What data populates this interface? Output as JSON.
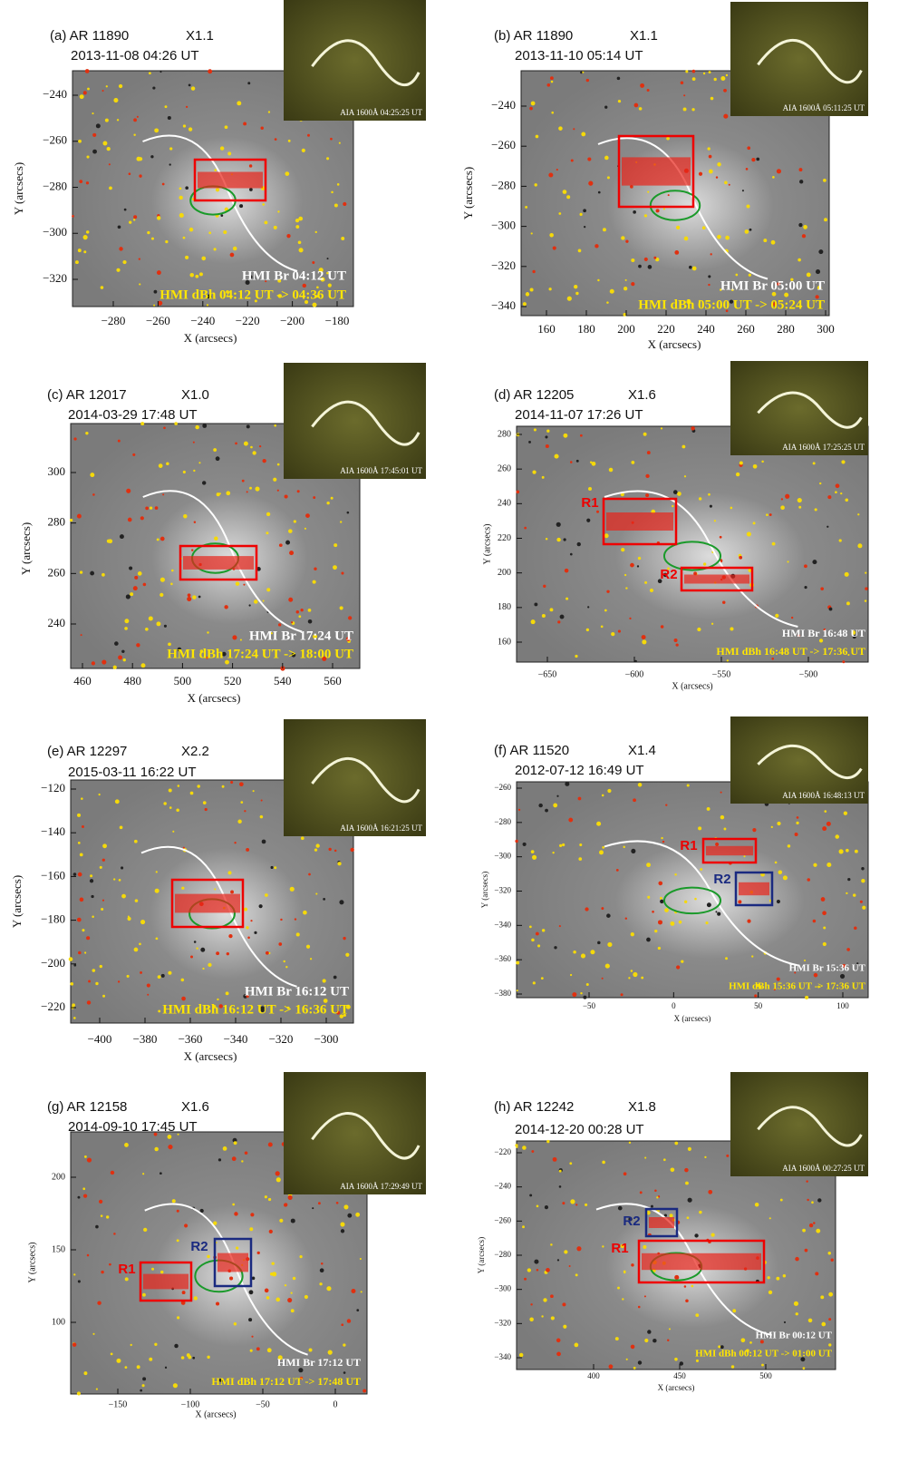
{
  "panels": [
    {
      "title": "(a) AR 11890",
      "flare_class": "X1.1",
      "time": "2013-11-08  04:26 UT",
      "inset_label": "AIA 1600Å 04:25:25 UT",
      "br_label": "HMI Br 04:12 UT",
      "dbh_label": "HMI dBh 04:12 UT -> 04:36 UT",
      "x_label": "X (arcsecs)",
      "y_label": "Y (arcsecs)",
      "x_ticks": [
        "−280",
        "−260",
        "−240",
        "−220",
        "−200",
        "−180"
      ],
      "y_ticks": [
        "−240",
        "−260",
        "−280",
        "−300",
        "−320"
      ]
    },
    {
      "title": "(b) AR 11890",
      "flare_class": "X1.1",
      "time": "2013-11-10  05:14 UT",
      "inset_label": "AIA 1600Å 05:11:25 UT",
      "br_label": "HMI Br 05:00 UT",
      "dbh_label": "HMI dBh 05:00 UT -> 05:24 UT",
      "x_label": "X (arcsecs)",
      "y_label": "Y (arcsecs)",
      "x_ticks": [
        "160",
        "180",
        "200",
        "220",
        "240",
        "260",
        "280",
        "300"
      ],
      "y_ticks": [
        "−240",
        "−260",
        "−280",
        "−300",
        "−320",
        "−340"
      ]
    },
    {
      "title": "(c) AR 12017",
      "flare_class": "X1.0",
      "time": "2014-03-29  17:48 UT",
      "inset_label": "AIA 1600Å 17:45:01 UT",
      "br_label": "HMI Br 17:24 UT",
      "dbh_label": "HMI dBh 17:24 UT -> 18:00 UT",
      "x_label": "X (arcsecs)",
      "y_label": "Y (arcsecs)",
      "x_ticks": [
        "460",
        "480",
        "500",
        "520",
        "540",
        "560"
      ],
      "y_ticks": [
        "300",
        "280",
        "260",
        "240"
      ]
    },
    {
      "title": "(d) AR 12205",
      "flare_class": "X1.6",
      "time": "2014-11-07  17:26 UT",
      "inset_label": "AIA 1600Å 17:25:25 UT",
      "br_label": "HMI Br 16:48 UT",
      "dbh_label": "HMI dBh 16:48 UT -> 17:36 UT",
      "x_label": "X (arcsecs)",
      "y_label": "Y (arcsecs)",
      "x_ticks": [
        "−650",
        "−600",
        "−550",
        "−500"
      ],
      "y_ticks": [
        "280",
        "260",
        "240",
        "220",
        "200",
        "180",
        "160"
      ],
      "regions": [
        "R1",
        "R2"
      ]
    },
    {
      "title": "(e) AR 12297",
      "flare_class": "X2.2",
      "time": "2015-03-11  16:22 UT",
      "inset_label": "AIA 1600Å 16:21:25 UT",
      "br_label": "HMI Br 16:12 UT",
      "dbh_label": "HMI dBh 16:12 UT -> 16:36 UT",
      "x_label": "X (arcsecs)",
      "y_label": "Y (arcsecs)",
      "x_ticks": [
        "−400",
        "−380",
        "−360",
        "−340",
        "−320",
        "−300"
      ],
      "y_ticks": [
        "−120",
        "−140",
        "−160",
        "−180",
        "−200",
        "−220"
      ]
    },
    {
      "title": "(f) AR 11520",
      "flare_class": "X1.4",
      "time": "2012-07-12  16:49 UT",
      "inset_label": "AIA 1600Å 16:48:13 UT",
      "br_label": "HMI Br 15:36 UT",
      "dbh_label": "HMI dBh 15:36 UT -> 17:36 UT",
      "x_label": "X (arcsecs)",
      "y_label": "Y (arcsecs)",
      "x_ticks": [
        "−50",
        "0",
        "50",
        "100"
      ],
      "y_ticks": [
        "−260",
        "−280",
        "−300",
        "−320",
        "−340",
        "−360",
        "−380"
      ],
      "regions": [
        "R1",
        "R2"
      ]
    },
    {
      "title": "(g) AR 12158",
      "flare_class": "X1.6",
      "time": "2014-09-10  17:45 UT",
      "inset_label": "AIA 1600Å 17:29:49 UT",
      "br_label": "HMI Br 17:12 UT",
      "dbh_label": "HMI dBh 17:12 UT -> 17:48 UT",
      "x_label": "X (arcsecs)",
      "y_label": "Y (arcsecs)",
      "x_ticks": [
        "−150",
        "−100",
        "−50",
        "0"
      ],
      "y_ticks": [
        "200",
        "150",
        "100"
      ],
      "regions": [
        "R1",
        "R2"
      ]
    },
    {
      "title": "(h) AR 12242",
      "flare_class": "X1.8",
      "time": "2014-12-20  00:28 UT",
      "inset_label": "AIA 1600Å 00:27:25 UT",
      "br_label": "HMI Br 00:12 UT",
      "dbh_label": "HMI dBh 00:12 UT -> 01:00 UT",
      "x_label": "X (arcsecs)",
      "y_label": "Y (arcsecs)",
      "x_ticks": [
        "400",
        "450",
        "500"
      ],
      "y_ticks": [
        "−220",
        "−240",
        "−260",
        "−280",
        "−300",
        "−320",
        "−340"
      ],
      "regions": [
        "R2",
        "R1"
      ]
    }
  ]
}
